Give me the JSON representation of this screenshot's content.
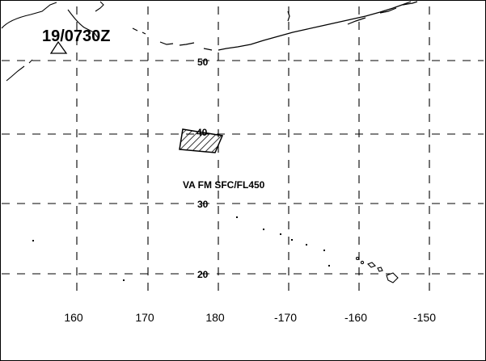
{
  "map": {
    "time_label": "19/0730Z",
    "area_label": "VA FM SFC/FL450",
    "lat_labels": [
      "50",
      "40",
      "30",
      "20"
    ],
    "lon_labels": [
      "160",
      "170",
      "180",
      "-170",
      "-160",
      "-150"
    ],
    "colors": {
      "ink": "#000000",
      "background": "#ffffff"
    },
    "icons": [
      "triangle-marker-icon",
      "hatched-area-icon"
    ]
  }
}
